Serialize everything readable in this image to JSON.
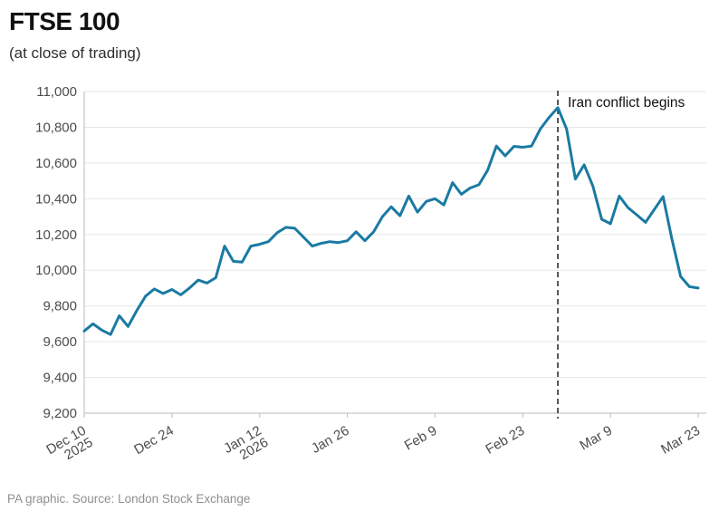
{
  "header": {
    "title": "FTSE 100",
    "subtitle": "(at close of trading)"
  },
  "footer": {
    "source": "PA graphic. Source: London Stock Exchange"
  },
  "chart_data": {
    "type": "line",
    "title": "FTSE 100",
    "subtitle": "(at close of trading)",
    "xlabel": "",
    "ylabel": "",
    "ylim": [
      9200,
      11000
    ],
    "ytick_step": 200,
    "grid": true,
    "legend": "none",
    "line_color": "#1a7aa2",
    "grid_color": "#e7e7e7",
    "axis_color": "#c6c6c6",
    "label_color": "#4d4d4d",
    "annotation": {
      "label": "Iran conflict begins",
      "index": 54
    },
    "x_ticks": [
      {
        "index": 0,
        "label": "Dec 10",
        "label2": "2025"
      },
      {
        "index": 10,
        "label": "Dec 24"
      },
      {
        "index": 20,
        "label": "Jan 12",
        "label2": "2026"
      },
      {
        "index": 30,
        "label": "Jan 26"
      },
      {
        "index": 40,
        "label": "Feb 9"
      },
      {
        "index": 50,
        "label": "Feb 23"
      },
      {
        "index": 60,
        "label": "Mar 9"
      },
      {
        "index": 70,
        "label": "Mar 23"
      }
    ],
    "dates": [
      "Dec 10",
      "Dec 11",
      "Dec 12",
      "Dec 15",
      "Dec 16",
      "Dec 17",
      "Dec 18",
      "Dec 19",
      "Dec 22",
      "Dec 23",
      "Dec 24",
      "Dec 29",
      "Dec 30",
      "Dec 31",
      "Jan 2",
      "Jan 5",
      "Jan 6",
      "Jan 7",
      "Jan 8",
      "Jan 9",
      "Jan 12",
      "Jan 13",
      "Jan 14",
      "Jan 15",
      "Jan 16",
      "Jan 19",
      "Jan 20",
      "Jan 21",
      "Jan 22",
      "Jan 23",
      "Jan 26",
      "Jan 27",
      "Jan 28",
      "Jan 29",
      "Jan 30",
      "Feb 2",
      "Feb 3",
      "Feb 4",
      "Feb 5",
      "Feb 6",
      "Feb 9",
      "Feb 10",
      "Feb 11",
      "Feb 12",
      "Feb 13",
      "Feb 16",
      "Feb 17",
      "Feb 18",
      "Feb 19",
      "Feb 20",
      "Feb 23",
      "Feb 24",
      "Feb 25",
      "Feb 26",
      "Feb 27",
      "Mar 2",
      "Mar 3",
      "Mar 4",
      "Mar 5",
      "Mar 6",
      "Mar 9",
      "Mar 10",
      "Mar 11",
      "Mar 12",
      "Mar 13",
      "Mar 16",
      "Mar 17",
      "Mar 18",
      "Mar 19",
      "Mar 20",
      "Mar 23"
    ],
    "values": [
      9660,
      9700,
      9665,
      9640,
      9745,
      9685,
      9775,
      9855,
      9895,
      9870,
      9892,
      9862,
      9900,
      9945,
      9928,
      9958,
      10135,
      10050,
      10045,
      10135,
      10145,
      10160,
      10210,
      10240,
      10235,
      10185,
      10135,
      10150,
      10160,
      10155,
      10165,
      10215,
      10165,
      10215,
      10300,
      10355,
      10305,
      10415,
      10325,
      10385,
      10400,
      10365,
      10490,
      10425,
      10460,
      10478,
      10560,
      10695,
      10640,
      10693,
      10688,
      10695,
      10790,
      10855,
      10910,
      10790,
      10510,
      10590,
      10470,
      10285,
      10260,
      10415,
      10350,
      10310,
      10268,
      10340,
      10412,
      10175,
      9965,
      9908,
      9900
    ]
  }
}
